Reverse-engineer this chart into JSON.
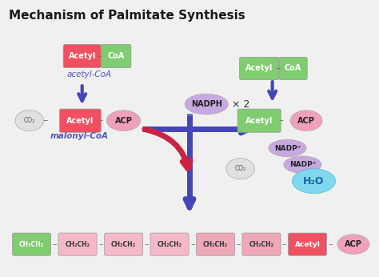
{
  "title": "Mechanism of Palmitate Synthesis",
  "bg_color": "#f0f0f0",
  "title_color": "#1a1a1a",
  "colors": {
    "red_box": "#f05060",
    "green_box": "#80cc70",
    "pink_ellipse": "#f0a0b8",
    "lavender_ellipse": "#c8a8e0",
    "blue_arrow": "#4444bb",
    "red_arrow": "#cc2244",
    "light_pink_box": "#f5b8c8",
    "mid_pink_box": "#f0a0b0",
    "cyan_blob": "#80d8ee",
    "co2_circle": "#e0e0e0",
    "text_dark": "#333333",
    "text_white": "#ffffff",
    "dash_color": "#777777"
  },
  "labels": {
    "acetyl_coa_label": "acetyl-CoA",
    "malonyl_coa_label": "malonyl-CoA",
    "nadph": "NADPH",
    "times2": "× 2",
    "nadp1": "NADP⁺",
    "nadp2": "NADP⁺",
    "co2_left": "CO₂",
    "co2_right": "CO₂",
    "h2o": "H₂O",
    "acetyl": "Acetyl",
    "coa": "CoA",
    "acp": "ACP",
    "ch3ch2": "CH₃CH₂",
    "ch2ch2": "CH₂CH₂"
  },
  "layout": {
    "fig_w": 4.74,
    "fig_h": 3.46,
    "dpi": 100
  }
}
